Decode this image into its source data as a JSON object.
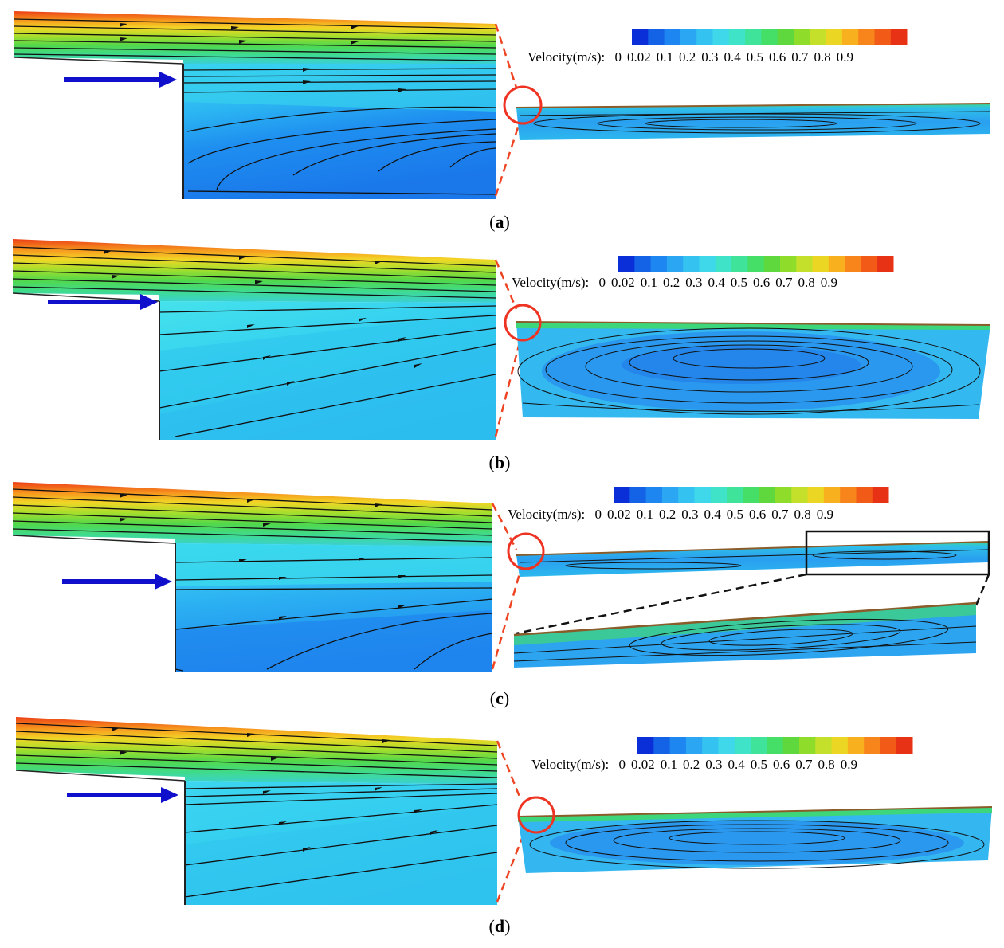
{
  "legend": {
    "title": "Velocity(m/s):",
    "ticks": [
      "0",
      "0.02",
      "0.1",
      "0.2",
      "0.3",
      "0.4",
      "0.5",
      "0.6",
      "0.7",
      "0.8",
      "0.9"
    ],
    "colors": [
      "#0a2ed8",
      "#1463e6",
      "#1e86f0",
      "#2aa6f2",
      "#34c2f0",
      "#3fd8ea",
      "#3ee3c8",
      "#3fe39a",
      "#45df68",
      "#5ed83c",
      "#8fdc2b",
      "#c4e02a",
      "#ecd624",
      "#f8b01f",
      "#f8841c",
      "#f25a18",
      "#e83216"
    ]
  },
  "panels": [
    {
      "id": "a",
      "caption_open": "(",
      "caption_letter": "a",
      "caption_close": ")"
    },
    {
      "id": "b",
      "caption_open": "(",
      "caption_letter": "b",
      "caption_close": ")"
    },
    {
      "id": "c",
      "caption_open": "(",
      "caption_letter": "c",
      "caption_close": ")"
    },
    {
      "id": "d",
      "caption_open": "(",
      "caption_letter": "d",
      "caption_close": ")"
    }
  ]
}
